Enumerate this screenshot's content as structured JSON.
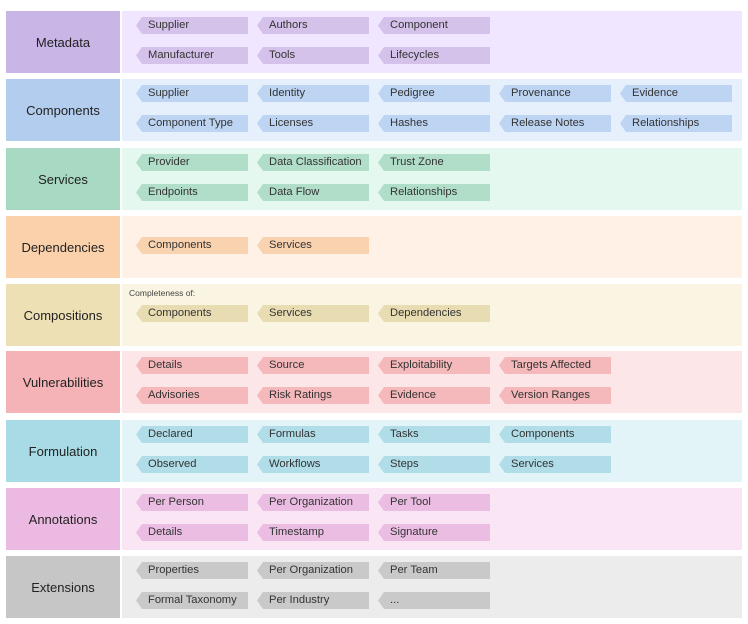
{
  "rows": [
    {
      "label": "Metadata",
      "label_color": "#c9b5e6",
      "body_color": "#f0e6ff",
      "chip_color": "#d5c2ea",
      "chips": [
        [
          "Supplier",
          "Authors",
          "Component"
        ],
        [
          "Manufacturer",
          "Tools",
          "Lifecycles"
        ]
      ]
    },
    {
      "label": "Components",
      "label_color": "#b3cdee",
      "body_color": "#e6f0fc",
      "chip_color": "#bdd4f2",
      "chips": [
        [
          "Supplier",
          "Identity",
          "Pedigree",
          "Provenance",
          "Evidence"
        ],
        [
          "Component Type",
          "Licenses",
          "Hashes",
          "Release Notes",
          "Relationships"
        ]
      ]
    },
    {
      "label": "Services",
      "label_color": "#a8d9c2",
      "body_color": "#e5f8ef",
      "chip_color": "#b0dec9",
      "chips": [
        [
          "Provider",
          "Data Classification",
          "Trust Zone"
        ],
        [
          "Endpoints",
          "Data Flow",
          "Relationships"
        ]
      ]
    },
    {
      "label": "Dependencies",
      "label_color": "#fbd1ac",
      "body_color": "#fff1e6",
      "chip_color": "#f9d3b0",
      "chips": [
        [
          "Components",
          "Services"
        ]
      ]
    },
    {
      "label": "Compositions",
      "label_color": "#ede0b5",
      "body_color": "#faf5e2",
      "chip_color": "#e8dcb2",
      "note": "Completeness of:",
      "chips": [
        [
          "Components",
          "Services",
          "Dependencies"
        ]
      ]
    },
    {
      "label": "Vulnerabilities",
      "label_color": "#f5b3b7",
      "body_color": "#fde6e7",
      "chip_color": "#f5b8bb",
      "chips": [
        [
          "Details",
          "Source",
          "Exploitability",
          "Targets Affected"
        ],
        [
          "Advisories",
          "Risk Ratings",
          "Evidence",
          "Version Ranges"
        ]
      ]
    },
    {
      "label": "Formulation",
      "label_color": "#a9dbe6",
      "body_color": "#e3f4f8",
      "chip_color": "#b0dde8",
      "chips": [
        [
          "Declared",
          "Formulas",
          "Tasks",
          "Components"
        ],
        [
          "Observed",
          "Workflows",
          "Steps",
          "Services"
        ]
      ]
    },
    {
      "label": "Annotations",
      "label_color": "#ebb9e1",
      "body_color": "#f9e5f4",
      "chip_color": "#ebbde3",
      "chips": [
        [
          "Per Person",
          "Per Organization",
          "Per Tool"
        ],
        [
          "Details",
          "Timestamp",
          "Signature"
        ]
      ]
    },
    {
      "label": "Extensions",
      "label_color": "#c6c6c6",
      "body_color": "#ececec",
      "chip_color": "#c9c9c9",
      "chips": [
        [
          "Properties",
          "Per Organization",
          "Per Team"
        ],
        [
          "Formal Taxonomy",
          "Per Industry",
          "..."
        ]
      ]
    }
  ]
}
